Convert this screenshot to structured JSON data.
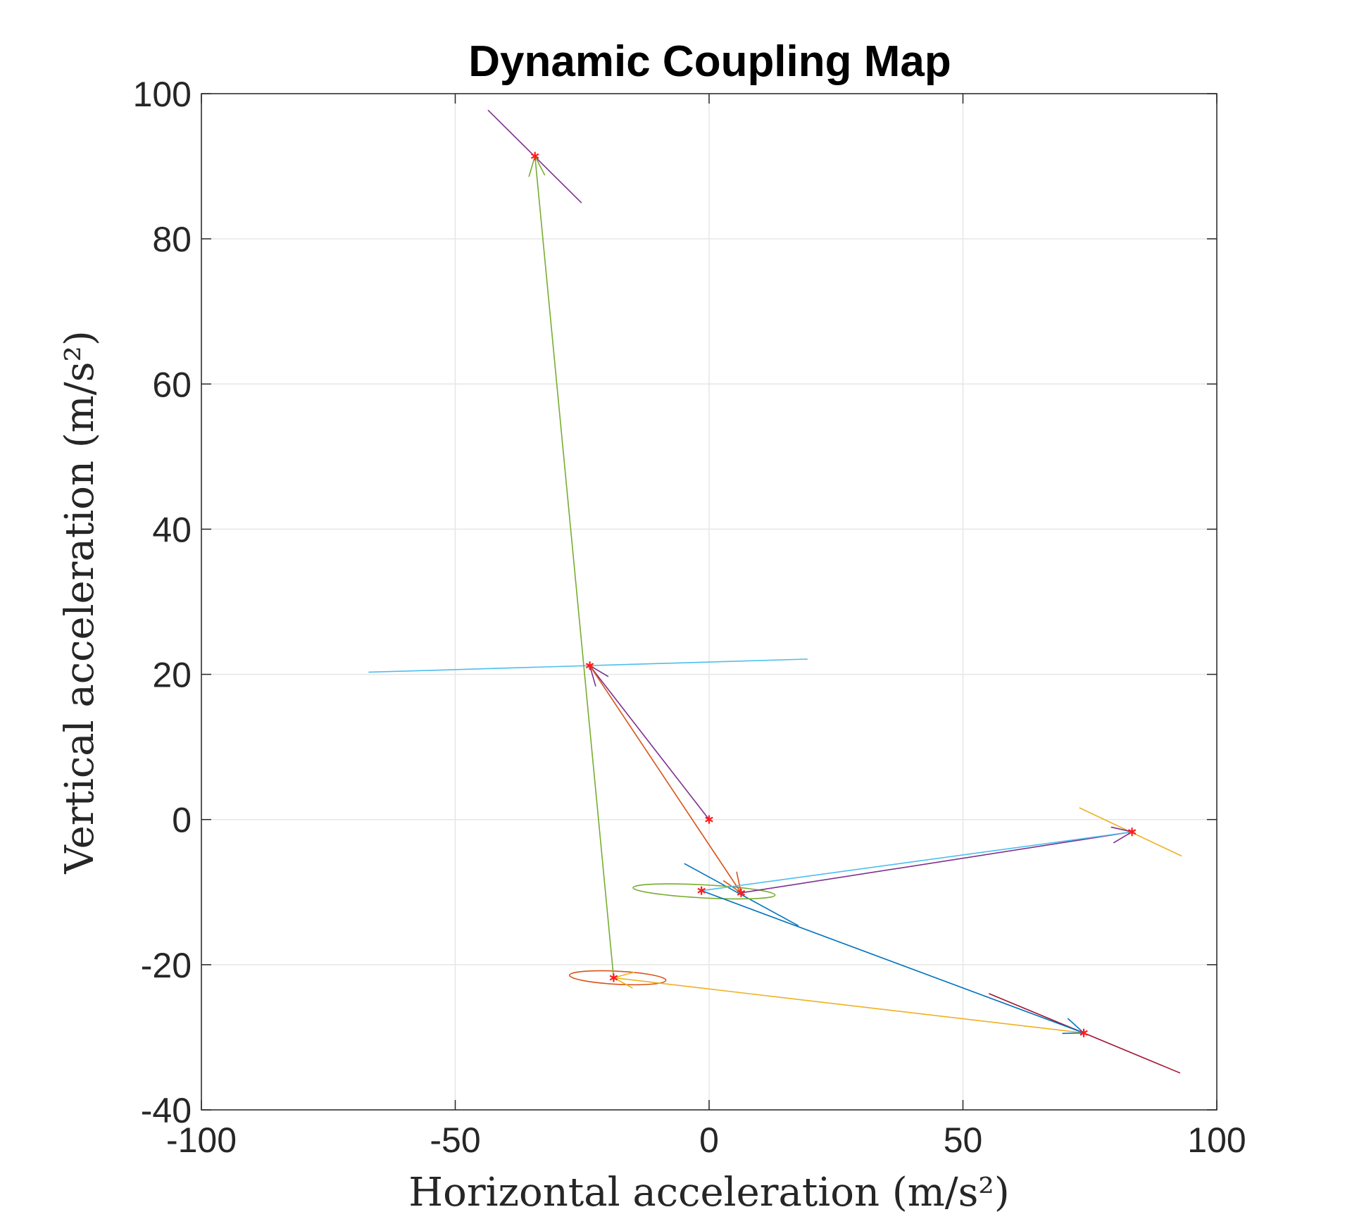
{
  "chart_data": {
    "type": "line",
    "title": "Dynamic Coupling Map",
    "xlabel": "Horizontal acceleration (m/s²)",
    "ylabel": "Vertical acceleration (m/s²)",
    "xlim": [
      -100,
      100
    ],
    "ylim": [
      -40,
      100
    ],
    "xticks": [
      -100,
      -50,
      0,
      50,
      100
    ],
    "yticks": [
      -40,
      -20,
      0,
      20,
      40,
      60,
      80,
      100
    ],
    "grid": true,
    "legend": "none",
    "points": [
      {
        "x": 0,
        "y": 0
      },
      {
        "x": -23.5,
        "y": 21.2
      },
      {
        "x": -34.3,
        "y": 91.4
      },
      {
        "x": -18.8,
        "y": -21.8
      },
      {
        "x": 73.8,
        "y": -29.4
      },
      {
        "x": 6.3,
        "y": -10.1
      },
      {
        "x": -1.5,
        "y": -9.8
      },
      {
        "x": 83.3,
        "y": -1.7
      }
    ],
    "links": [
      {
        "from": [
          0,
          0
        ],
        "to": [
          -23.5,
          21.2
        ],
        "color": "#7e2f8e",
        "arrow": true
      },
      {
        "from": [
          -23.5,
          21.2
        ],
        "to": [
          6.3,
          -10.1
        ],
        "color": "#d95319",
        "arrow": true
      },
      {
        "from": [
          -18.8,
          -21.8
        ],
        "to": [
          -34.3,
          91.4
        ],
        "color": "#77ac30",
        "arrow": true
      },
      {
        "from": [
          73.8,
          -29.4
        ],
        "to": [
          -18.8,
          -21.8
        ],
        "color": "#edb120",
        "arrow": true
      },
      {
        "from": [
          -1.5,
          -9.8
        ],
        "to": [
          73.8,
          -29.4
        ],
        "color": "#0072bd",
        "arrow": true
      },
      {
        "from": [
          6.3,
          -10.1
        ],
        "to": [
          83.3,
          -1.7
        ],
        "color": "#7e2f8e",
        "arrow": true
      },
      {
        "from": [
          83.3,
          -1.7
        ],
        "to": [
          -1.5,
          -9.8
        ],
        "color": "#4dbeee",
        "arrow": false
      }
    ],
    "principal_axes": [
      {
        "from": [
          -43.5,
          97.7
        ],
        "to": [
          -25.2,
          85.0
        ],
        "color": "#7e2f8e"
      },
      {
        "from": [
          -67.0,
          20.3
        ],
        "to": [
          19.3,
          22.1
        ],
        "color": "#4dbeee"
      },
      {
        "from": [
          73.0,
          1.6
        ],
        "to": [
          93.0,
          -5.0
        ],
        "color": "#edb120"
      },
      {
        "from": [
          -4.8,
          -6.1
        ],
        "to": [
          17.5,
          -14.6
        ],
        "color": "#0072bd"
      },
      {
        "from": [
          55.2,
          -24.0
        ],
        "to": [
          92.7,
          -34.9
        ],
        "color": "#a2142f"
      }
    ],
    "ellipses": [
      {
        "center": [
          -1.0,
          -9.9
        ],
        "rx": 14.0,
        "ry": 0.9,
        "angle_deg": -3,
        "color": "#77ac30"
      },
      {
        "center": [
          -18.0,
          -21.8
        ],
        "rx": 9.5,
        "ry": 0.9,
        "angle_deg": -3,
        "color": "#d95319"
      }
    ],
    "marker_color": "#ff0000"
  }
}
